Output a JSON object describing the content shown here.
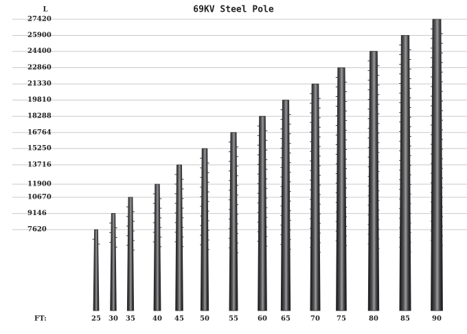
{
  "chart_data": {
    "type": "bar",
    "title": "69KV Steel Pole",
    "y_label": "L",
    "x_label": "FT:",
    "categories": [
      "25",
      "30",
      "35",
      "40",
      "45",
      "50",
      "55",
      "60",
      "65",
      "70",
      "75",
      "80",
      "85",
      "90"
    ],
    "values": [
      7620,
      9146,
      10670,
      11900,
      13716,
      15250,
      16764,
      18288,
      19810,
      21330,
      22860,
      24400,
      25900,
      27420
    ],
    "color": "#2e2e34",
    "ylim": [
      0,
      27420
    ],
    "yticks": [
      7620,
      9146,
      10670,
      11900,
      13716,
      15250,
      16764,
      18288,
      19810,
      21330,
      22860,
      24400,
      25900,
      27420
    ],
    "grid": true
  }
}
